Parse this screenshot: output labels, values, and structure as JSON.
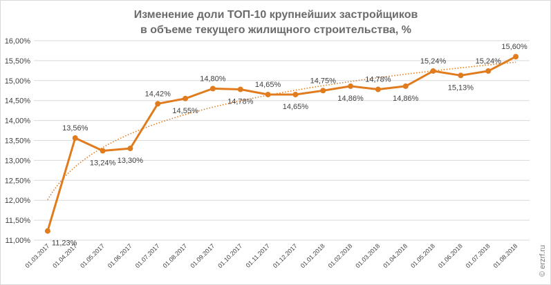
{
  "chart_data": {
    "type": "line",
    "title_lines": [
      "Изменение доли ТОП-10 крупнейших застройщиков",
      "в объеме текущего жилищного строительства, %"
    ],
    "xlabel": "",
    "ylabel": "",
    "ylim": [
      11.0,
      16.0
    ],
    "y_ticks": [
      "11,00%",
      "11,50%",
      "12,00%",
      "12,50%",
      "13,00%",
      "13,50%",
      "14,00%",
      "14,50%",
      "15,00%",
      "15,50%",
      "16,00%"
    ],
    "y_tick_values": [
      11.0,
      11.5,
      12.0,
      12.5,
      13.0,
      13.5,
      14.0,
      14.5,
      15.0,
      15.5,
      16.0
    ],
    "categories": [
      "01.03.2017",
      "01.04.2017",
      "01.05.2017",
      "01.06.2017",
      "01.07.2017",
      "01.08.2017",
      "01.09.2017",
      "01.10.2017",
      "01.11.2017",
      "01.12.2017",
      "01.01.2018",
      "01.02.2018",
      "01.03.2018",
      "01.04.2018",
      "01.05.2018",
      "01.06.2018",
      "01.07.2018",
      "01.08.2018"
    ],
    "series": [
      {
        "values": [
          11.23,
          13.56,
          13.24,
          13.3,
          14.42,
          14.55,
          14.8,
          14.78,
          14.65,
          14.65,
          14.75,
          14.86,
          14.78,
          14.86,
          15.24,
          15.13,
          15.24,
          15.6
        ],
        "labels": [
          "11,23%",
          "13,56%",
          "13,24%",
          "13,30%",
          "14,42%",
          "14,55%",
          "14,80%",
          "14,78%",
          "14,65%",
          "14,65%",
          "14,75%",
          "14,86%",
          "14,78%",
          "14,86%",
          "15,24%",
          "15,13%",
          "15,24%",
          "15,60%"
        ],
        "color": "#E07B1E"
      }
    ],
    "trendline": {
      "style": "dotted",
      "color": "#E07B1E"
    },
    "grid": true,
    "legend": "none"
  },
  "watermark": "© erzrf.ru"
}
